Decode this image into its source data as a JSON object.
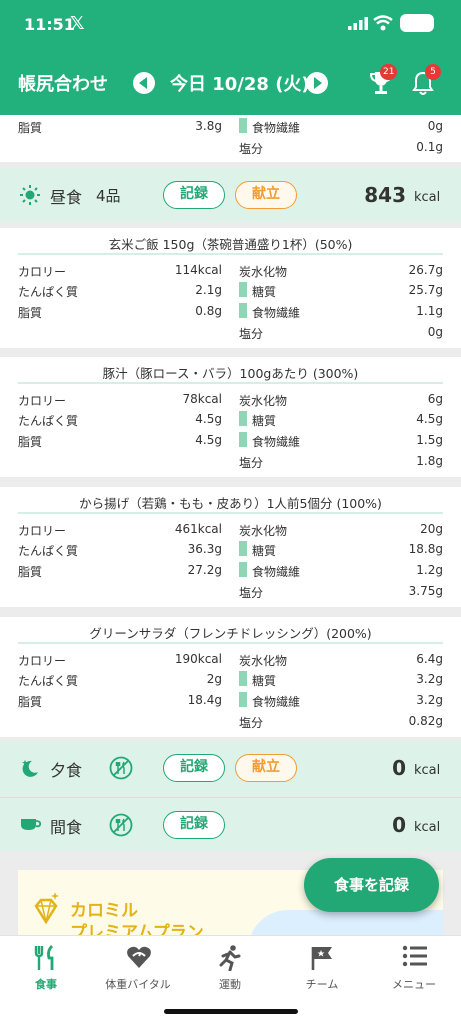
{
  "status": {
    "time": "11:51",
    "x_logo": "𝕏"
  },
  "header": {
    "title": "帳尻合わせ",
    "date": "今日 10/28 (火)",
    "trophy_badge": "21",
    "bell_badge": "5"
  },
  "top_partial": {
    "left": [
      {
        "label": "脂質",
        "value": "3.8g"
      }
    ],
    "right": [
      {
        "label": "食物繊維",
        "value": "0g",
        "bar": true
      },
      {
        "label": "塩分",
        "value": "0.1g",
        "bar": false
      }
    ]
  },
  "lunch": {
    "name": "昼食",
    "count": "4品",
    "record_label": "記録",
    "menu_label": "献立",
    "kcal": "843",
    "unit": "kcal"
  },
  "foods": [
    {
      "title": "玄米ご飯 150g（茶碗普通盛り1杯）(50%)",
      "left": [
        {
          "label": "カロリー",
          "value": "114kcal"
        },
        {
          "label": "たんぱく質",
          "value": "2.1g"
        },
        {
          "label": "脂質",
          "value": "0.8g"
        }
      ],
      "right": [
        {
          "label": "炭水化物",
          "value": "26.7g",
          "bar": false
        },
        {
          "label": "糖質",
          "value": "25.7g",
          "bar": true
        },
        {
          "label": "食物繊維",
          "value": "1.1g",
          "bar": true
        },
        {
          "label": "塩分",
          "value": "0g",
          "bar": false
        }
      ]
    },
    {
      "title": "豚汁（豚ロース・バラ）100gあたり (300%)",
      "left": [
        {
          "label": "カロリー",
          "value": "78kcal"
        },
        {
          "label": "たんぱく質",
          "value": "4.5g"
        },
        {
          "label": "脂質",
          "value": "4.5g"
        }
      ],
      "right": [
        {
          "label": "炭水化物",
          "value": "6g",
          "bar": false
        },
        {
          "label": "糖質",
          "value": "4.5g",
          "bar": true
        },
        {
          "label": "食物繊維",
          "value": "1.5g",
          "bar": true
        },
        {
          "label": "塩分",
          "value": "1.8g",
          "bar": false
        }
      ]
    },
    {
      "title": "から揚げ（若鶏・もも・皮あり）1人前5個分 (100%)",
      "left": [
        {
          "label": "カロリー",
          "value": "461kcal"
        },
        {
          "label": "たんぱく質",
          "value": "36.3g"
        },
        {
          "label": "脂質",
          "value": "27.2g"
        }
      ],
      "right": [
        {
          "label": "炭水化物",
          "value": "20g",
          "bar": false
        },
        {
          "label": "糖質",
          "value": "18.8g",
          "bar": true
        },
        {
          "label": "食物繊維",
          "value": "1.2g",
          "bar": true
        },
        {
          "label": "塩分",
          "value": "3.75g",
          "bar": false
        }
      ]
    },
    {
      "title": "グリーンサラダ（フレンチドレッシング）(200%)",
      "left": [
        {
          "label": "カロリー",
          "value": "190kcal"
        },
        {
          "label": "たんぱく質",
          "value": "2g"
        },
        {
          "label": "脂質",
          "value": "18.4g"
        }
      ],
      "right": [
        {
          "label": "炭水化物",
          "value": "6.4g",
          "bar": false
        },
        {
          "label": "糖質",
          "value": "3.2g",
          "bar": true
        },
        {
          "label": "食物繊維",
          "value": "3.2g",
          "bar": true
        },
        {
          "label": "塩分",
          "value": "0.82g",
          "bar": false
        }
      ]
    }
  ],
  "dinner": {
    "name": "夕食",
    "record_label": "記録",
    "menu_label": "献立",
    "kcal": "0",
    "unit": "kcal"
  },
  "snack": {
    "name": "間食",
    "record_label": "記録",
    "kcal": "0",
    "unit": "kcal"
  },
  "promo": {
    "line1": "カロミル",
    "line2": "プレミアムプラン"
  },
  "fab_label": "食事を記録",
  "tabs": [
    {
      "label": "食事",
      "icon": "fork-knife-icon"
    },
    {
      "label": "体重バイタル",
      "icon": "heart-scale-icon"
    },
    {
      "label": "運動",
      "icon": "runner-icon"
    },
    {
      "label": "チーム",
      "icon": "flag-icon"
    },
    {
      "label": "メニュー",
      "icon": "menu-list-icon"
    }
  ],
  "colors": {
    "primary": "#22b07d",
    "accent_orange": "#f39c33",
    "meal_bg": "#ddf3ea",
    "nutrient_bar": "#8ed6b6"
  }
}
